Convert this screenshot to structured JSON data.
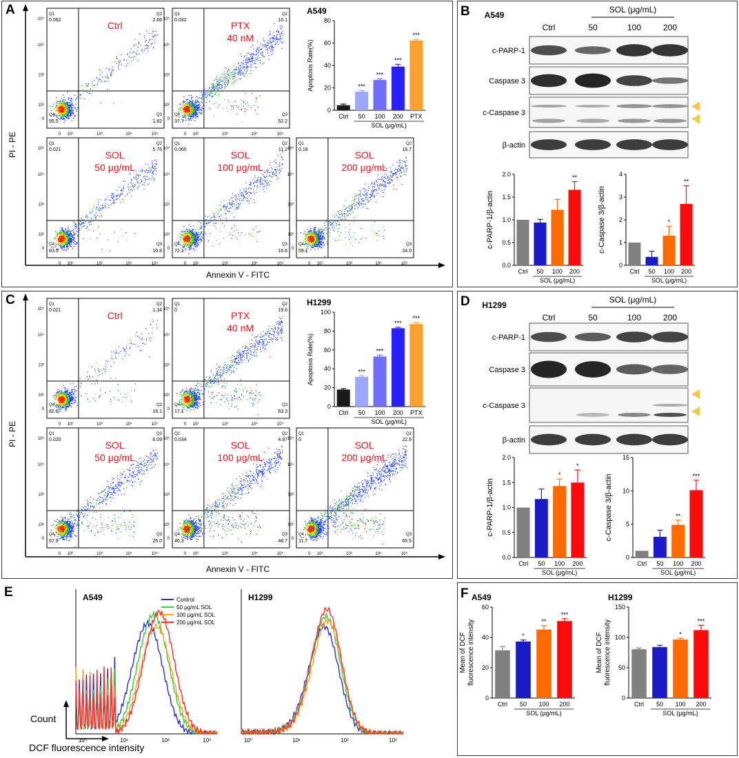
{
  "colors": {
    "ctrl": "#808080",
    "s50": "#1a1ac8",
    "s100": "#ff6a00",
    "s200": "#ff0a0a",
    "red_text": "#e8141e",
    "arrow": "#f4c84a",
    "apo_ctrl": "#1a1a1a",
    "apo_50": "#9fa6ff",
    "apo_100": "#6e6eff",
    "apo_200": "#2a20ff",
    "apo_ptx": "#ffa030"
  },
  "panelA": {
    "letter": "A",
    "cell": "A549",
    "y_axis": "PI - PE",
    "x_axis": "Annexin V - FITC",
    "plots": [
      {
        "label1": "Ctrl",
        "label2": "",
        "q1": "0.062",
        "q2": "2.66",
        "q3": "1.82",
        "q4": "95.5"
      },
      {
        "label1": "PTX",
        "label2": "40 nM",
        "q1": "0.032",
        "q2": "10.1",
        "q3": "52.2",
        "q4": "37.7"
      },
      {
        "label1": "SOL",
        "label2": "50 μg/mL",
        "q1": "0.021",
        "q2": "5.76",
        "q3": "10.8",
        "q4": "83.5"
      },
      {
        "label1": "SOL",
        "label2": "100 μg/mL",
        "q1": "0.065",
        "q2": "11.2",
        "q3": "16.6",
        "q4": "72.1"
      },
      {
        "label1": "SOL",
        "label2": "200 μg/mL",
        "q1": "0.18",
        "q2": "16.7",
        "q3": "24.0",
        "q4": "59.1"
      }
    ]
  },
  "panelB": {
    "letter": "B",
    "cell": "A549",
    "header": "SOL (μg/mL)",
    "lanes": [
      "Ctrl",
      "50",
      "100",
      "200"
    ],
    "blots": [
      "c-PARP-1",
      "Caspase 3",
      "c-Caspase 3",
      "β-actin"
    ]
  },
  "panelC": {
    "letter": "C",
    "cell": "H1299",
    "y_axis": "PI - PE",
    "x_axis": "Annexin V - FITC",
    "plots": [
      {
        "label1": "Ctrl",
        "label2": "",
        "q1": "0.021",
        "q2": "1.34",
        "q3": "16.1",
        "q4": "82.6"
      },
      {
        "label1": "PTX",
        "label2": "40 nM",
        "q1": "0",
        "q2": "19.6",
        "q3": "63.3",
        "q4": "17.1"
      },
      {
        "label1": "SOL",
        "label2": "50 μg/mL",
        "q1": "0.020",
        "q2": "6.09",
        "q3": "26.0",
        "q4": "67.9"
      },
      {
        "label1": "SOL",
        "label2": "100 μg/mL",
        "q1": "0.034",
        "q2": "4.97",
        "q3": "48.7",
        "q4": "46.3"
      },
      {
        "label1": "SOL",
        "label2": "200 μg/mL",
        "q1": "0",
        "q2": "22.9",
        "q3": "65.5",
        "q4": "11.7"
      }
    ]
  },
  "panelD": {
    "letter": "D",
    "cell": "H1299",
    "header": "SOL (μg/mL)",
    "lanes": [
      "Ctrl",
      "50",
      "100",
      "200"
    ],
    "blots": [
      "c-PARP-1",
      "Caspase 3",
      "c-Caspase 3",
      "β-actin"
    ]
  },
  "panelE": {
    "letter": "E",
    "y_axis": "Count",
    "x_axis": "DCF fluorescence intensity",
    "cells": [
      "A549",
      "H1299"
    ],
    "legend": [
      "Control",
      "50  μg/mL SOL",
      "100 μg/mL SOL",
      "200 μg/mL SOL"
    ],
    "legend_colors": [
      "#2b2bd6",
      "#2fd12f",
      "#ffa020",
      "#ff2a2a"
    ],
    "x_ticks": [
      "10⁰",
      "10¹",
      "10²",
      "10³"
    ]
  },
  "panelF": {
    "letter": "F"
  },
  "chart_data": [
    {
      "id": "A-apoptosis",
      "type": "bar",
      "title": "A549",
      "ylabel": "Apoptosis Rate(%)",
      "xlabel": "SOL (μg/mL)",
      "categories": [
        "Ctrl",
        "50",
        "100",
        "200",
        "PTX"
      ],
      "values": [
        4.5,
        16.6,
        27.0,
        39.0,
        62.3
      ],
      "errors": [
        1,
        1,
        1,
        2,
        1
      ],
      "sig": [
        "",
        "***",
        "***",
        "***",
        "***"
      ],
      "ylim": [
        0,
        80
      ],
      "yticks": [
        0,
        20,
        40,
        60,
        80
      ]
    },
    {
      "id": "B-parp",
      "type": "bar",
      "ylabel": "c-PARP-1/β-actin",
      "xlabel": "SOL (μg/mL)",
      "categories": [
        "Ctrl",
        "50",
        "100",
        "200"
      ],
      "values": [
        1.0,
        0.94,
        1.22,
        1.66
      ],
      "errors": [
        0,
        0.07,
        0.23,
        0.18
      ],
      "sig": [
        "",
        "",
        "",
        "**"
      ],
      "ylim": [
        0,
        2.0
      ],
      "yticks": [
        0.0,
        0.5,
        1.0,
        1.5,
        2.0
      ]
    },
    {
      "id": "B-caspase",
      "type": "bar",
      "ylabel": "c-Caspase 3/β-actin",
      "xlabel": "SOL (μg/mL)",
      "categories": [
        "Ctrl",
        "50",
        "100",
        "200"
      ],
      "values": [
        1.0,
        0.37,
        1.3,
        2.7
      ],
      "errors": [
        0,
        0.25,
        0.42,
        0.8
      ],
      "sig": [
        "",
        "",
        "*",
        "**"
      ],
      "ylim": [
        0,
        4
      ],
      "yticks": [
        0,
        1,
        2,
        3,
        4
      ]
    },
    {
      "id": "C-apoptosis",
      "type": "bar",
      "title": "H1299",
      "ylabel": "Apoptosis Rate(%)",
      "xlabel": "SOL (μg/mL)",
      "categories": [
        "Ctrl",
        "50",
        "100",
        "200",
        "PTX"
      ],
      "values": [
        18.0,
        31.5,
        53.0,
        83.0,
        87.5
      ],
      "errors": [
        1,
        1,
        1.5,
        1,
        1.5
      ],
      "sig": [
        "",
        "***",
        "***",
        "***",
        "***"
      ],
      "ylim": [
        0,
        100
      ],
      "yticks": [
        0,
        20,
        40,
        60,
        80,
        100
      ]
    },
    {
      "id": "D-parp",
      "type": "bar",
      "ylabel": "c-PARP-1/β-actin",
      "xlabel": "SOL (μg/mL)",
      "categories": [
        "Ctrl",
        "50",
        "100",
        "200"
      ],
      "values": [
        1.0,
        1.17,
        1.43,
        1.5
      ],
      "errors": [
        0,
        0.2,
        0.14,
        0.25
      ],
      "sig": [
        "",
        "",
        "*",
        "*"
      ],
      "ylim": [
        0,
        2.0
      ],
      "yticks": [
        0.0,
        0.5,
        1.0,
        1.5,
        2.0
      ]
    },
    {
      "id": "D-caspase",
      "type": "bar",
      "ylabel": "c-Caspase 3/β-actin",
      "xlabel": "SOL (μg/mL)",
      "categories": [
        "Ctrl",
        "50",
        "100",
        "200"
      ],
      "values": [
        1.0,
        3.1,
        4.9,
        10.1
      ],
      "errors": [
        0,
        1.0,
        0.7,
        1.5
      ],
      "sig": [
        "",
        "",
        "**",
        "***"
      ],
      "ylim": [
        0,
        15
      ],
      "yticks": [
        0,
        5,
        10,
        15
      ]
    },
    {
      "id": "F-a549",
      "type": "bar",
      "title": "A549",
      "ylabel": "Mean of DCF fluorescence intensity",
      "xlabel": "SOL (μg/mL)",
      "categories": [
        "Ctrl",
        "50",
        "100",
        "200"
      ],
      "values": [
        31.5,
        37.3,
        45.2,
        50.8
      ],
      "errors": [
        2.5,
        1.0,
        2.5,
        1.5
      ],
      "sig": [
        "",
        "*",
        "**",
        "***"
      ],
      "ylim": [
        0,
        60
      ],
      "yticks": [
        0,
        20,
        40,
        60
      ]
    },
    {
      "id": "F-h1299",
      "type": "bar",
      "title": "H1299",
      "ylabel": "Mean of DCF fluorescence intensity",
      "xlabel": "SOL (μg/mL)",
      "categories": [
        "Ctrl",
        "50",
        "100",
        "200"
      ],
      "values": [
        80.5,
        84.0,
        96.5,
        112.0
      ],
      "errors": [
        2,
        3,
        2,
        8
      ],
      "sig": [
        "",
        "",
        "*",
        "***"
      ],
      "ylim": [
        0,
        150
      ],
      "yticks": [
        0,
        50,
        100,
        150
      ]
    }
  ]
}
